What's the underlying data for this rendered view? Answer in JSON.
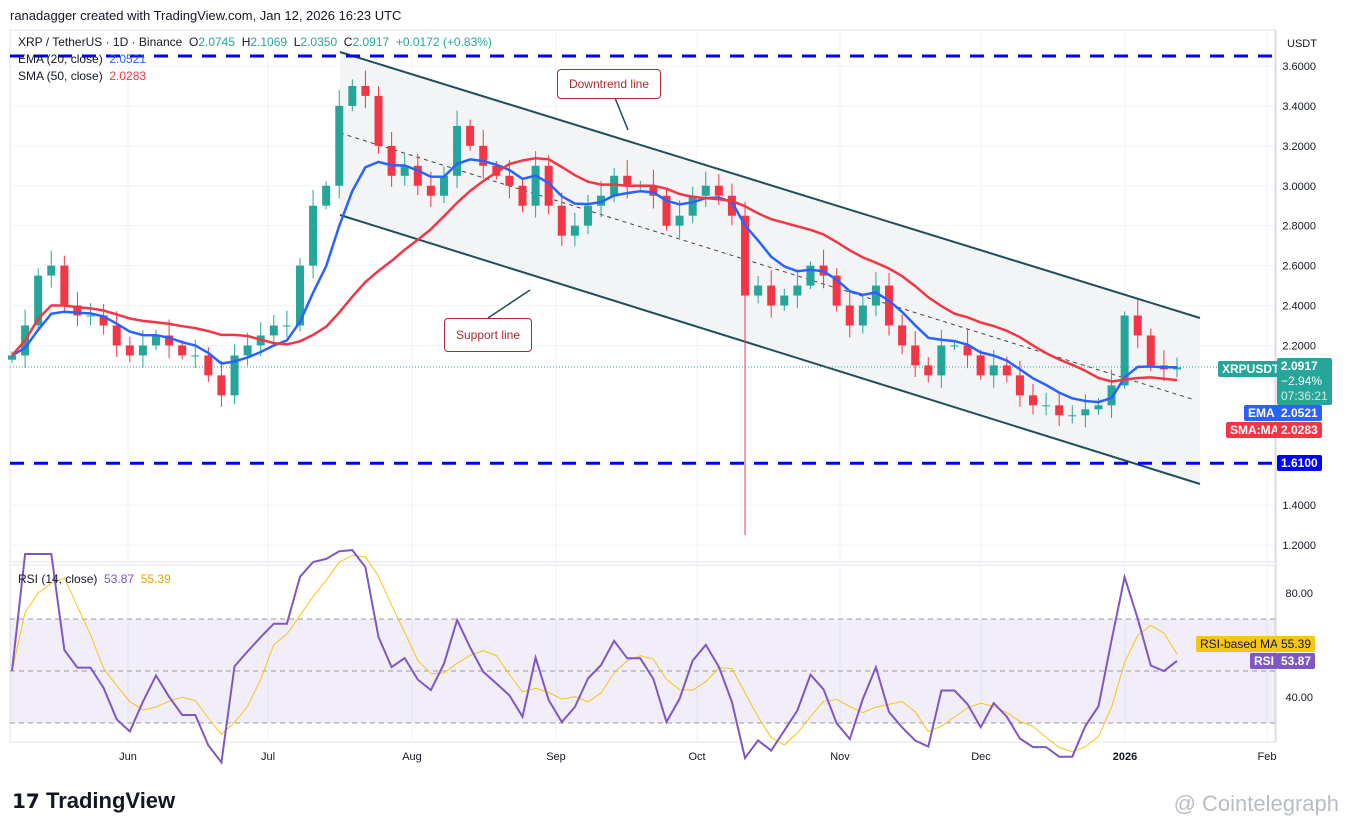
{
  "header": {
    "credit": "ranadagger created with TradingView.com, Jan 12, 2026 16:23 UTC"
  },
  "legend": {
    "symbol": "XRP / TetherUS · 1D · Binance",
    "o_label": "O",
    "o": "2.0745",
    "h_label": "H",
    "h": "2.1069",
    "l_label": "L",
    "l": "2.0350",
    "c_label": "C",
    "c": "2.0917",
    "change": "+0.0172 (+0.83%)",
    "ema_label": "EMA (20, close)",
    "ema": "2.0521",
    "sma_label": "SMA (50, close)",
    "sma": "2.0283",
    "rsi_label": "RSI (14, close)",
    "rsi": "53.87",
    "rsi_ma": "55.39"
  },
  "axis": {
    "currency": "USDT",
    "price_ticks": [
      "3.6000",
      "3.4000",
      "3.2000",
      "3.0000",
      "2.8000",
      "2.6000",
      "2.4000",
      "2.2000",
      "1.4000",
      "1.2000"
    ],
    "rsi_ticks": [
      "80.00",
      "40.00"
    ],
    "time_labels": [
      "Jun",
      "Jul",
      "Aug",
      "Sep",
      "Oct",
      "Nov",
      "Dec",
      "2026",
      "Feb"
    ]
  },
  "tags": {
    "symbol": "XRPUSDT",
    "price": "2.0917",
    "pct": "−2.94%",
    "countdown": "07:36:21",
    "ema_label": "EMA",
    "ema": "2.0521",
    "sma_label": "SMA:MA",
    "sma": "2.0283",
    "level": "1.6100",
    "rsi_ma_label": "RSI-based MA",
    "rsi_ma": "55.39",
    "rsi_label": "RSI",
    "rsi": "53.87"
  },
  "annotations": {
    "downtrend": "Downtrend line",
    "support": "Support line"
  },
  "footer": {
    "brand": "TradingView",
    "watermark": "@ Cointelegraph"
  },
  "colors": {
    "up": "#26a69a",
    "down": "#f23645",
    "ema": "#2962ff",
    "sma": "#f23645",
    "rsi": "#7e57c2",
    "rsi_ma": "#f5c518",
    "level": "#0000ff",
    "channel": "#1f4e5a"
  },
  "chart_data": {
    "type": "candlestick",
    "title": "XRP / TetherUS · 1D · Binance",
    "interval_days": 3,
    "start": "May 7 2025",
    "end": "Jan 12 2026",
    "closes": [
      2.15,
      2.3,
      2.55,
      2.6,
      2.4,
      2.35,
      2.35,
      2.3,
      2.2,
      2.15,
      2.2,
      2.25,
      2.2,
      2.15,
      2.15,
      2.05,
      1.95,
      2.15,
      2.2,
      2.25,
      2.3,
      2.3,
      2.6,
      2.9,
      3.0,
      3.4,
      3.5,
      3.45,
      3.2,
      3.05,
      3.1,
      3.0,
      2.95,
      3.05,
      3.3,
      3.2,
      3.1,
      3.05,
      3.0,
      2.9,
      3.1,
      2.9,
      2.75,
      2.8,
      2.9,
      2.95,
      3.05,
      3.0,
      3.0,
      2.95,
      2.8,
      2.85,
      2.95,
      3.0,
      2.95,
      2.85,
      2.45,
      2.5,
      2.4,
      2.45,
      2.5,
      2.6,
      2.55,
      2.4,
      2.3,
      2.4,
      2.5,
      2.3,
      2.2,
      2.1,
      2.05,
      2.2,
      2.2,
      2.15,
      2.05,
      2.1,
      2.05,
      1.95,
      1.9,
      1.9,
      1.85,
      1.85,
      1.88,
      1.9,
      2.0,
      2.35,
      2.25,
      2.1,
      2.08,
      2.09
    ],
    "notable_wick_low": {
      "date": "Oct 10 2025",
      "value": 1.25
    },
    "levels": [
      3.65,
      1.61
    ],
    "ema_period": 20,
    "sma_period": 50,
    "rsi_period": 14,
    "ylim": [
      1.15,
      3.7
    ],
    "rsi_ylim": [
      20,
      100
    ],
    "rsi_bands": [
      70,
      50,
      30
    ]
  }
}
